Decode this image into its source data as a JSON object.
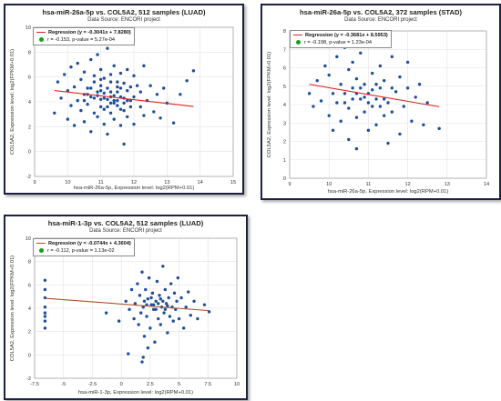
{
  "chart_data": [
    {
      "type": "scatter",
      "title": "hsa-miR-26a-5p vs. COL5A2, 512 samples (LUAD)",
      "subtitle": "Data Source: ENCORI project",
      "xlabel": "hsa-miR-26a-5p, Expression level: log2(RPM+0.01)",
      "ylabel": "COL5A2, Expression level: log2(FPKM+0.01)",
      "xlim": [
        9,
        15
      ],
      "ylim": [
        -2,
        10
      ],
      "xticks": [
        "9",
        "10",
        "11",
        "12",
        "13",
        "14",
        "15"
      ],
      "yticks": [
        "-2",
        "0",
        "2",
        "4",
        "6",
        "8",
        "10"
      ],
      "legend": {
        "regression": "Regression (y = -0.3041x + 7.8280)",
        "stats": "r = -0.153, p-value = 5.27e-04"
      },
      "regression": {
        "slope": -0.3041,
        "intercept": 7.828
      },
      "point_color": "#1e4f9a",
      "line_color": "#e02020",
      "points": [
        [
          9.6,
          3.1
        ],
        [
          9.7,
          5.6
        ],
        [
          9.8,
          4.3
        ],
        [
          9.9,
          6.2
        ],
        [
          10,
          2.6
        ],
        [
          10,
          4.9
        ],
        [
          10.1,
          3.7
        ],
        [
          10.1,
          6.8
        ],
        [
          10.2,
          5.2
        ],
        [
          10.2,
          2.1
        ],
        [
          10.3,
          4.1
        ],
        [
          10.3,
          7.1
        ],
        [
          10.4,
          5.8
        ],
        [
          10.4,
          3.3
        ],
        [
          10.5,
          4.6
        ],
        [
          10.5,
          6.4
        ],
        [
          10.5,
          2.4
        ],
        [
          10.6,
          5.1
        ],
        [
          10.6,
          3.8
        ],
        [
          10.7,
          7.4
        ],
        [
          10.7,
          4.4
        ],
        [
          10.7,
          1.6
        ],
        [
          10.8,
          5.6
        ],
        [
          10.8,
          3.1
        ],
        [
          10.8,
          6.1
        ],
        [
          10.9,
          4.8
        ],
        [
          10.9,
          2.8
        ],
        [
          10.9,
          7.8
        ],
        [
          11,
          5.3
        ],
        [
          11,
          3.6
        ],
        [
          11,
          4.2
        ],
        [
          11,
          6.6
        ],
        [
          11.1,
          2.2
        ],
        [
          11.1,
          5.9
        ],
        [
          11.1,
          4.7
        ],
        [
          11.1,
          3.4
        ],
        [
          11.2,
          5.1
        ],
        [
          11.2,
          8.3
        ],
        [
          11.2,
          1.4
        ],
        [
          11.3,
          4.4
        ],
        [
          11.3,
          6.2
        ],
        [
          11.3,
          3.1
        ],
        [
          11.3,
          5.6
        ],
        [
          11.4,
          4.1
        ],
        [
          11.4,
          2.6
        ],
        [
          11.4,
          6.9
        ],
        [
          11.5,
          5.2
        ],
        [
          11.5,
          3.7
        ],
        [
          11.5,
          4.8
        ],
        [
          11.6,
          2.1
        ],
        [
          11.6,
          6.3
        ],
        [
          11.6,
          4.4
        ],
        [
          11.7,
          3.3
        ],
        [
          11.7,
          5.5
        ],
        [
          11.7,
          0.6
        ],
        [
          11.8,
          4.1
        ],
        [
          11.8,
          6.6
        ],
        [
          11.8,
          2.8
        ],
        [
          11.9,
          5.2
        ],
        [
          11.9,
          3.6
        ],
        [
          12,
          4.4
        ],
        [
          12,
          6.1
        ],
        [
          12,
          2.2
        ],
        [
          12.1,
          5.3
        ],
        [
          12.2,
          3.6
        ],
        [
          12.2,
          4.8
        ],
        [
          12.3,
          6.9
        ],
        [
          12.3,
          2.9
        ],
        [
          12.4,
          4.1
        ],
        [
          12.5,
          5.3
        ],
        [
          12.6,
          3.2
        ],
        [
          12.7,
          4.6
        ],
        [
          12.8,
          2.7
        ],
        [
          12.9,
          5.1
        ],
        [
          13,
          3.9
        ],
        [
          13.2,
          2.3
        ],
        [
          13.4,
          4.6
        ],
        [
          13.6,
          5.7
        ],
        [
          13.8,
          6.5
        ],
        [
          10.5,
          4.1
        ],
        [
          10.6,
          4.6
        ],
        [
          10.8,
          4.3
        ],
        [
          11,
          4.9
        ],
        [
          11.2,
          4.2
        ],
        [
          11.3,
          4.8
        ],
        [
          11.4,
          4.5
        ],
        [
          11.5,
          4.1
        ],
        [
          11.6,
          5.1
        ],
        [
          11.7,
          4.3
        ],
        [
          11.8,
          4.9
        ],
        [
          11.9,
          4.1
        ],
        [
          11.1,
          4.3
        ],
        [
          10.9,
          4.5
        ],
        [
          11.3,
          3.9
        ],
        [
          11.5,
          5.6
        ],
        [
          11.7,
          3.9
        ],
        [
          10.7,
          5.1
        ],
        [
          11,
          5.8
        ],
        [
          11.2,
          3.6
        ],
        [
          11.4,
          3.9
        ],
        [
          11.6,
          3.4
        ]
      ]
    },
    {
      "type": "scatter",
      "title": "hsa-miR-26a-5p vs. COL5A2, 372 samples (STAD)",
      "subtitle": "Data Source: ENCORI project",
      "xlabel": "hsa-miR-26a-5p, Expression level: log2(RPM+0.01)",
      "ylabel": "COL5A2, Expression level: log2(FPKM+0.01)",
      "xlim": [
        9,
        14
      ],
      "ylim": [
        0,
        8
      ],
      "xticks": [
        "9",
        "10",
        "11",
        "12",
        "13",
        "14"
      ],
      "yticks": [
        "0",
        "1",
        "2",
        "3",
        "4",
        "5",
        "6",
        "7",
        "8"
      ],
      "legend": {
        "regression": "Regression (y = -0.3681x + 8.5953)",
        "stats": "r = -0.198, p-value = 1.23e-04"
      },
      "regression": {
        "slope": -0.3681,
        "intercept": 8.5953
      },
      "point_color": "#1e4f9a",
      "line_color": "#e02020",
      "points": [
        [
          9.5,
          4.6
        ],
        [
          9.6,
          3.9
        ],
        [
          9.7,
          5.3
        ],
        [
          9.8,
          4.2
        ],
        [
          9.9,
          6.1
        ],
        [
          10,
          3.4
        ],
        [
          10,
          5.6
        ],
        [
          10.1,
          4.6
        ],
        [
          10.1,
          2.6
        ],
        [
          10.2,
          6.6
        ],
        [
          10.2,
          4.1
        ],
        [
          10.3,
          5.1
        ],
        [
          10.3,
          3.1
        ],
        [
          10.4,
          7.1
        ],
        [
          10.4,
          4.6
        ],
        [
          10.5,
          5.9
        ],
        [
          10.5,
          2.1
        ],
        [
          10.5,
          3.8
        ],
        [
          10.6,
          4.9
        ],
        [
          10.6,
          6.3
        ],
        [
          10.7,
          3.3
        ],
        [
          10.7,
          5.4
        ],
        [
          10.7,
          1.6
        ],
        [
          10.8,
          4.3
        ],
        [
          10.8,
          6.8
        ],
        [
          10.9,
          3.6
        ],
        [
          10.9,
          5.1
        ],
        [
          11,
          2.6
        ],
        [
          11,
          4.6
        ],
        [
          11,
          7.4
        ],
        [
          11.1,
          3.9
        ],
        [
          11.1,
          5.7
        ],
        [
          11.2,
          4.3
        ],
        [
          11.2,
          2.9
        ],
        [
          11.3,
          6.1
        ],
        [
          11.3,
          4.9
        ],
        [
          11.4,
          3.4
        ],
        [
          11.4,
          5.3
        ],
        [
          11.5,
          1.9
        ],
        [
          11.5,
          4.1
        ],
        [
          11.6,
          6.6
        ],
        [
          11.6,
          3.6
        ],
        [
          11.7,
          4.7
        ],
        [
          11.8,
          2.4
        ],
        [
          11.8,
          5.5
        ],
        [
          11.9,
          3.9
        ],
        [
          12,
          4.9
        ],
        [
          12,
          6.3
        ],
        [
          12.1,
          3.1
        ],
        [
          12.2,
          4.4
        ],
        [
          12.3,
          5.1
        ],
        [
          12.4,
          2.9
        ],
        [
          12.5,
          4.1
        ],
        [
          12.8,
          2.7
        ],
        [
          10.4,
          4.1
        ],
        [
          10.6,
          4.3
        ],
        [
          10.8,
          4.9
        ],
        [
          11,
          4.1
        ],
        [
          11.2,
          5.1
        ],
        [
          11.4,
          4.3
        ],
        [
          11.6,
          4.9
        ],
        [
          10.9,
          4.4
        ],
        [
          11.3,
          3.9
        ],
        [
          10.7,
          4.6
        ],
        [
          11.1,
          4.8
        ]
      ]
    },
    {
      "type": "scatter",
      "title": "hsa-miR-1-3p vs. COL5A2, 512 samples (LUAD)",
      "subtitle": "Data Source: ENCORI project",
      "xlabel": "hsa-miR-1-3p, Expression level: log2(RPM+0.01)",
      "ylabel": "COL5A2, Expression level: log2(FPKM+0.01)",
      "xlim": [
        -7.5,
        10
      ],
      "ylim": [
        -2,
        10
      ],
      "xticks": [
        "-7.5",
        "-5",
        "-2.5",
        "0",
        "2.5",
        "5",
        "7.5",
        "10"
      ],
      "yticks": [
        "-2",
        "0",
        "2",
        "4",
        "6",
        "8",
        "10"
      ],
      "legend": {
        "regression": "Regression (y = -0.0744x + 4.3604)",
        "stats": "r = -0.112, p-value = 1.13e-02"
      },
      "regression": {
        "slope": -0.0744,
        "intercept": 4.3604
      },
      "point_color": "#1e4f9a",
      "line_color": "#b0502a",
      "points": [
        [
          -6.6,
          6.4
        ],
        [
          -6.6,
          5.6
        ],
        [
          -6.6,
          4.9
        ],
        [
          -6.6,
          4.1
        ],
        [
          -6.6,
          3.6
        ],
        [
          -6.6,
          2.9
        ],
        [
          -6.6,
          2.3
        ],
        [
          -6.6,
          3.3
        ],
        [
          -1.3,
          3.6
        ],
        [
          -0.2,
          2.9
        ],
        [
          0.4,
          4.6
        ],
        [
          0.7,
          3.9
        ],
        [
          0.9,
          5.6
        ],
        [
          1.1,
          3.1
        ],
        [
          1.2,
          4.4
        ],
        [
          1.4,
          6.1
        ],
        [
          1.5,
          2.6
        ],
        [
          1.6,
          5.1
        ],
        [
          1.7,
          3.6
        ],
        [
          1.8,
          7.1
        ],
        [
          1.9,
          4.1
        ],
        [
          2,
          1.6
        ],
        [
          2.1,
          5.6
        ],
        [
          2.2,
          3.3
        ],
        [
          2.3,
          4.8
        ],
        [
          2.4,
          6.6
        ],
        [
          2.5,
          2.3
        ],
        [
          2.6,
          4.3
        ],
        [
          2.7,
          5.3
        ],
        [
          2.8,
          3.9
        ],
        [
          2.9,
          1.1
        ],
        [
          3,
          4.6
        ],
        [
          3.1,
          6.3
        ],
        [
          3.2,
          3.1
        ],
        [
          3.3,
          5.1
        ],
        [
          3.4,
          2.6
        ],
        [
          3.5,
          4.1
        ],
        [
          3.6,
          7.6
        ],
        [
          3.7,
          3.6
        ],
        [
          3.8,
          5.6
        ],
        [
          3.9,
          4.4
        ],
        [
          4,
          1.9
        ],
        [
          4.1,
          4.9
        ],
        [
          4.2,
          3.3
        ],
        [
          4.3,
          6.1
        ],
        [
          4.4,
          4.1
        ],
        [
          4.5,
          2.9
        ],
        [
          4.6,
          5.3
        ],
        [
          4.7,
          3.9
        ],
        [
          4.8,
          4.6
        ],
        [
          4.9,
          6.6
        ],
        [
          5,
          3.1
        ],
        [
          5.2,
          4.9
        ],
        [
          5.4,
          2.3
        ],
        [
          5.6,
          4.1
        ],
        [
          5.8,
          5.4
        ],
        [
          6,
          3.4
        ],
        [
          6.3,
          4.6
        ],
        [
          6.6,
          3.1
        ],
        [
          7.2,
          4.3
        ],
        [
          7.6,
          3.7
        ],
        [
          1.9,
          -0.2
        ],
        [
          2.3,
          0.6
        ],
        [
          0.6,
          0.1
        ],
        [
          1.8,
          -0.6
        ],
        [
          2,
          4.6
        ],
        [
          2.8,
          4.3
        ],
        [
          3,
          3.9
        ],
        [
          3.4,
          4.8
        ],
        [
          3.8,
          3.9
        ],
        [
          2.6,
          4.9
        ],
        [
          3.2,
          4.4
        ],
        [
          4,
          4.2
        ],
        [
          2.2,
          4.3
        ],
        [
          3.6,
          4.6
        ]
      ]
    }
  ]
}
